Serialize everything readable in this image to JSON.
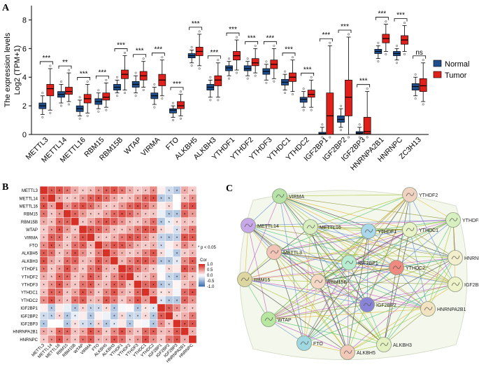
{
  "panels": {
    "a": {
      "label": "A"
    },
    "b": {
      "label": "B"
    },
    "c": {
      "label": "C"
    }
  },
  "chart_data": [
    {
      "type": "box",
      "ylabel_line1": "The expression levels",
      "ylabel_line2": "Log2 (TPM+1)",
      "ylim": [
        0,
        9
      ],
      "yticks": [
        "0",
        "2",
        "4",
        "6",
        "8"
      ],
      "legend": {
        "placement": "right",
        "items": [
          {
            "name": "Normal",
            "color": "#1f4e8c"
          },
          {
            "name": "Tumor",
            "color": "#e0201b"
          }
        ]
      },
      "categories": [
        "METTL3",
        "METTL14",
        "METTL16",
        "RBM15",
        "RBM15B",
        "WTAP",
        "VIRMA",
        "FTO",
        "ALKBH5",
        "ALKBH3",
        "YTHDF1",
        "YTHDF2",
        "YTHDF3",
        "YTHDC1",
        "YTHDC2",
        "IGF2BP1",
        "IGF2BP2",
        "IGF2BP3",
        "HNRNPA2B1",
        "HNRNPC",
        "ZC3H13"
      ],
      "significance": [
        "***",
        "**",
        "***",
        "***",
        "***",
        "***",
        "***",
        "***",
        "***",
        "***",
        "***",
        "***",
        "***",
        "***",
        "***",
        "***",
        "***",
        "***",
        "***",
        "***",
        "ns"
      ],
      "series": [
        {
          "name": "Normal",
          "color": "#1f4e8c",
          "boxes": [
            [
              1.4,
              1.8,
              2.0,
              2.2,
              2.7
            ],
            [
              2.2,
              2.6,
              2.8,
              3.0,
              3.5
            ],
            [
              1.3,
              1.6,
              1.8,
              2.0,
              2.4
            ],
            [
              1.8,
              2.1,
              2.3,
              2.5,
              2.9
            ],
            [
              2.9,
              3.1,
              3.3,
              3.5,
              3.8
            ],
            [
              2.9,
              3.3,
              3.5,
              3.7,
              4.1
            ],
            [
              2.1,
              2.5,
              2.7,
              2.9,
              3.3
            ],
            [
              1.2,
              1.5,
              1.7,
              1.8,
              2.0
            ],
            [
              5.0,
              5.35,
              5.5,
              5.65,
              5.9
            ],
            [
              2.6,
              3.1,
              3.3,
              3.5,
              3.8
            ],
            [
              4.1,
              4.45,
              4.65,
              4.8,
              5.1
            ],
            [
              4.1,
              4.45,
              4.6,
              4.8,
              5.1
            ],
            [
              3.8,
              4.2,
              4.4,
              4.6,
              4.9
            ],
            [
              3.1,
              3.45,
              3.65,
              3.85,
              4.2
            ],
            [
              1.9,
              2.25,
              2.45,
              2.6,
              3.0
            ],
            [
              0.0,
              0.02,
              0.05,
              0.15,
              0.5
            ],
            [
              0.5,
              0.85,
              1.05,
              1.3,
              1.8
            ],
            [
              0.0,
              0.05,
              0.1,
              0.2,
              0.5
            ],
            [
              5.3,
              5.65,
              5.8,
              5.95,
              6.2
            ],
            [
              5.2,
              5.5,
              5.65,
              5.8,
              6.0
            ],
            [
              2.7,
              3.1,
              3.35,
              3.55,
              4.0
            ]
          ]
        },
        {
          "name": "Tumor",
          "color": "#e0201b",
          "boxes": [
            [
              1.7,
              2.7,
              3.2,
              3.5,
              4.6
            ],
            [
              2.3,
              2.8,
              3.0,
              3.3,
              4.3
            ],
            [
              1.5,
              2.2,
              2.5,
              2.8,
              3.5
            ],
            [
              1.9,
              2.4,
              2.6,
              2.9,
              3.6
            ],
            [
              3.1,
              3.9,
              4.2,
              4.5,
              5.5
            ],
            [
              3.3,
              3.8,
              4.1,
              4.4,
              5.1
            ],
            [
              2.7,
              3.4,
              3.8,
              4.2,
              5.2
            ],
            [
              1.3,
              1.8,
              2.0,
              2.3,
              2.8
            ],
            [
              4.8,
              5.5,
              5.8,
              6.1,
              7.0
            ],
            [
              2.6,
              3.4,
              3.8,
              4.1,
              5.0
            ],
            [
              4.5,
              5.2,
              5.5,
              5.8,
              6.6
            ],
            [
              4.3,
              4.8,
              5.0,
              5.3,
              6.0
            ],
            [
              3.9,
              4.6,
              4.9,
              5.2,
              6.0
            ],
            [
              3.0,
              3.7,
              4.0,
              4.3,
              5.2
            ],
            [
              1.9,
              2.6,
              2.8,
              3.1,
              3.8
            ],
            [
              0.0,
              0.0,
              1.3,
              2.9,
              6.2
            ],
            [
              0.0,
              1.3,
              2.6,
              3.8,
              6.8
            ],
            [
              0.0,
              0.05,
              0.2,
              1.2,
              3.0
            ],
            [
              5.8,
              6.4,
              6.7,
              7.0,
              7.7
            ],
            [
              5.8,
              6.3,
              6.6,
              6.9,
              7.6
            ],
            [
              2.3,
              3.0,
              3.4,
              3.9,
              5.0
            ]
          ]
        }
      ]
    },
    {
      "type": "heatmap",
      "labels": [
        "METTL3",
        "METTL14",
        "METTL16",
        "RBM15",
        "RBM15B",
        "WTAP",
        "VIRMA",
        "FTO",
        "ALKBH5",
        "ALKBH3",
        "YTHDF1",
        "YTHDF2",
        "YTHDF3",
        "YTHDC1",
        "YTHDC2",
        "IGF2BP1",
        "IGF2BP2",
        "IGF2BP3",
        "HNRNPA2B1",
        "HNRNPC"
      ],
      "note": "* p < 0.05",
      "colorbar_title": "Cor",
      "colorbar_ticks": [
        "1.0",
        "0.5",
        "0.0",
        "-0.5",
        "-1.0"
      ],
      "colors": {
        "pos": "#d73027",
        "neg": "#4575b4",
        "mid": "#ffffff"
      }
    },
    {
      "type": "network",
      "nodes": [
        {
          "name": "VIRMA",
          "color": "#b7e3a8"
        },
        {
          "name": "YTHDF2",
          "color": "#f0d2c0"
        },
        {
          "name": "YTHDF3",
          "color": "#d8f0c0"
        },
        {
          "name": "METTL14",
          "color": "#c9a8ea"
        },
        {
          "name": "METTL16",
          "color": "#d9eec0"
        },
        {
          "name": "YTHDF1",
          "color": "#a8d8ea"
        },
        {
          "name": "YTHDC1",
          "color": "#e8f3c8"
        },
        {
          "name": "HNRNPC",
          "color": "#f3eecb"
        },
        {
          "name": "METTL3",
          "color": "#f2c4b8"
        },
        {
          "name": "IGF2BP1",
          "color": "#b8ecd0"
        },
        {
          "name": "YTHDC2",
          "color": "#ee8a80"
        },
        {
          "name": "RBM15",
          "color": "#ddd6a0"
        },
        {
          "name": "RBM15B",
          "color": "#f4d7c4"
        },
        {
          "name": "IGF2BP3",
          "color": "#eef3c8"
        },
        {
          "name": "IGF2BP2",
          "color": "#8a84d8"
        },
        {
          "name": "HNRNPA2B1",
          "color": "#f3e3c0"
        },
        {
          "name": "WTAP",
          "color": "#b8e8a0"
        },
        {
          "name": "FTO",
          "color": "#9fd8e0"
        },
        {
          "name": "ALKBH5",
          "color": "#f2c8b8"
        },
        {
          "name": "ALKBH3",
          "color": "#e3f0c0"
        }
      ]
    }
  ]
}
